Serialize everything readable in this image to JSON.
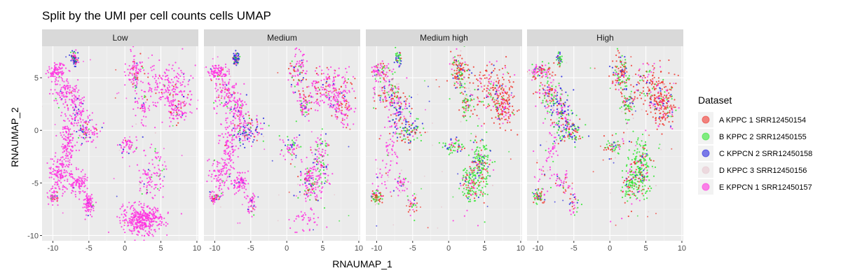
{
  "chart_data": {
    "type": "scatter",
    "title": "Split by the UMI per cell counts cells UMAP",
    "xlabel": "RNAUMAP_1",
    "ylabel": "RNAUMAP_2",
    "xlim": [
      -11.5,
      10.2
    ],
    "ylim": [
      -10.5,
      8
    ],
    "x_ticks": [
      -10,
      -5,
      0,
      5,
      10
    ],
    "y_ticks": [
      -10,
      -5,
      0,
      5
    ],
    "x_tick_labels": [
      "-10",
      "-5",
      "0",
      "5",
      "10"
    ],
    "y_tick_labels": [
      "-10",
      "-5",
      "0",
      "5"
    ],
    "panels": [
      "Low",
      "Medium",
      "Medium high",
      "High"
    ],
    "legend": {
      "title": "Dataset",
      "position": "right",
      "entries": [
        {
          "name": "A KPPC 1 SRR12450154",
          "color": "#f0372f"
        },
        {
          "name": "B KPPC 2 SRR12450155",
          "color": "#33e633"
        },
        {
          "name": "C KPPCN 2 SRR12450158",
          "color": "#2828e0"
        },
        {
          "name": "D KPPC 3 SRR12450156",
          "color": "#e8c8d0"
        },
        {
          "name": "E KPPCN 1 SRR12450157",
          "color": "#ff33e0"
        }
      ]
    },
    "clusters": [
      {
        "cx": -9.5,
        "cy": 5.6,
        "sx": 0.7,
        "sy": 0.4,
        "w": [
          0.05,
          0.05,
          0.02,
          0.08,
          0.8
        ]
      },
      {
        "cx": -7.0,
        "cy": 6.8,
        "sx": 0.2,
        "sy": 0.3,
        "w": [
          0.1,
          0.3,
          0.5,
          0.05,
          0.05
        ]
      },
      {
        "cx": -8.5,
        "cy": 3.5,
        "sx": 0.9,
        "sy": 0.8,
        "w": [
          0.1,
          0.1,
          0.1,
          0.1,
          0.6
        ]
      },
      {
        "cx": -6.8,
        "cy": 2.0,
        "sx": 0.7,
        "sy": 0.9,
        "w": [
          0.05,
          0.05,
          0.2,
          0.05,
          0.65
        ]
      },
      {
        "cx": -5.5,
        "cy": 0.0,
        "sx": 1.0,
        "sy": 0.6,
        "w": [
          0.2,
          0.2,
          0.35,
          0.05,
          0.2
        ]
      },
      {
        "cx": -8.0,
        "cy": -1.5,
        "sx": 0.6,
        "sy": 1.4,
        "w": [
          0.02,
          0.02,
          0.02,
          0.04,
          0.9
        ]
      },
      {
        "cx": -9.2,
        "cy": -4.2,
        "sx": 0.7,
        "sy": 0.9,
        "w": [
          0.02,
          0.02,
          0.02,
          0.04,
          0.9
        ]
      },
      {
        "cx": -6.5,
        "cy": -5.0,
        "sx": 0.6,
        "sy": 0.5,
        "w": [
          0.02,
          0.02,
          0.02,
          0.04,
          0.9
        ]
      },
      {
        "cx": -5.0,
        "cy": -7.0,
        "sx": 0.4,
        "sy": 0.5,
        "w": [
          0.1,
          0.1,
          0.05,
          0.1,
          0.65
        ]
      },
      {
        "cx": 1.5,
        "cy": 5.5,
        "sx": 0.6,
        "sy": 0.9,
        "w": [
          0.3,
          0.2,
          0.15,
          0.05,
          0.3
        ]
      },
      {
        "cx": 2.5,
        "cy": 2.5,
        "sx": 0.5,
        "sy": 0.8,
        "w": [
          0.2,
          0.3,
          0.1,
          0.1,
          0.3
        ]
      },
      {
        "cx": 6.0,
        "cy": 4.0,
        "sx": 1.5,
        "sy": 1.1,
        "w": [
          0.3,
          0.05,
          0.05,
          0.05,
          0.55
        ]
      },
      {
        "cx": 7.5,
        "cy": 2.0,
        "sx": 0.8,
        "sy": 0.8,
        "w": [
          0.35,
          0.05,
          0.05,
          0.05,
          0.5
        ]
      },
      {
        "cx": 4.5,
        "cy": -3.5,
        "sx": 0.7,
        "sy": 1.5,
        "w": [
          0.1,
          0.45,
          0.1,
          0.05,
          0.3
        ]
      },
      {
        "cx": 3.0,
        "cy": -5.0,
        "sx": 0.6,
        "sy": 0.8,
        "w": [
          0.15,
          0.35,
          0.1,
          0.05,
          0.35
        ]
      },
      {
        "cx": 0.5,
        "cy": -1.5,
        "sx": 0.8,
        "sy": 0.5,
        "w": [
          0.1,
          0.3,
          0.2,
          0.05,
          0.35
        ]
      },
      {
        "cx": -10.0,
        "cy": -6.3,
        "sx": 0.4,
        "sy": 0.3,
        "w": [
          0.3,
          0.3,
          0.1,
          0.1,
          0.2
        ]
      },
      {
        "cx": 2.5,
        "cy": -8.5,
        "sx": 1.4,
        "sy": 0.7,
        "w": [
          0.02,
          0.02,
          0.01,
          0.05,
          0.9
        ]
      }
    ],
    "panel_cluster_weights": [
      [
        1,
        1,
        1,
        1,
        1,
        1.5,
        1.2,
        1,
        1,
        1,
        0.5,
        2,
        1,
        0.6,
        0.5,
        0.6,
        0.5,
        4
      ],
      [
        1,
        1,
        1,
        1,
        1.4,
        1.2,
        0.8,
        0.8,
        0.5,
        1,
        0.7,
        2,
        1,
        1.5,
        1.2,
        0.6,
        0.6,
        0.4
      ],
      [
        1,
        0.4,
        1.2,
        1,
        1,
        0.5,
        0.3,
        0.4,
        0.4,
        1.4,
        0.7,
        1.8,
        1.3,
        2,
        1.2,
        0.6,
        0.7,
        0.05
      ],
      [
        1,
        0.4,
        1.2,
        1.2,
        1.2,
        0.4,
        0.3,
        0.4,
        0.4,
        1.4,
        0.8,
        2,
        1.4,
        2,
        1.2,
        0.6,
        0.6,
        0.05
      ]
    ],
    "panel_dataset_multipliers": [
      [
        0.4,
        0.3,
        0.4,
        0.3,
        3.0
      ],
      [
        0.8,
        0.6,
        0.9,
        0.6,
        2.2
      ],
      [
        1.8,
        1.8,
        1.0,
        1.2,
        0.4
      ],
      [
        2.0,
        1.8,
        1.1,
        1.2,
        0.3
      ]
    ]
  }
}
